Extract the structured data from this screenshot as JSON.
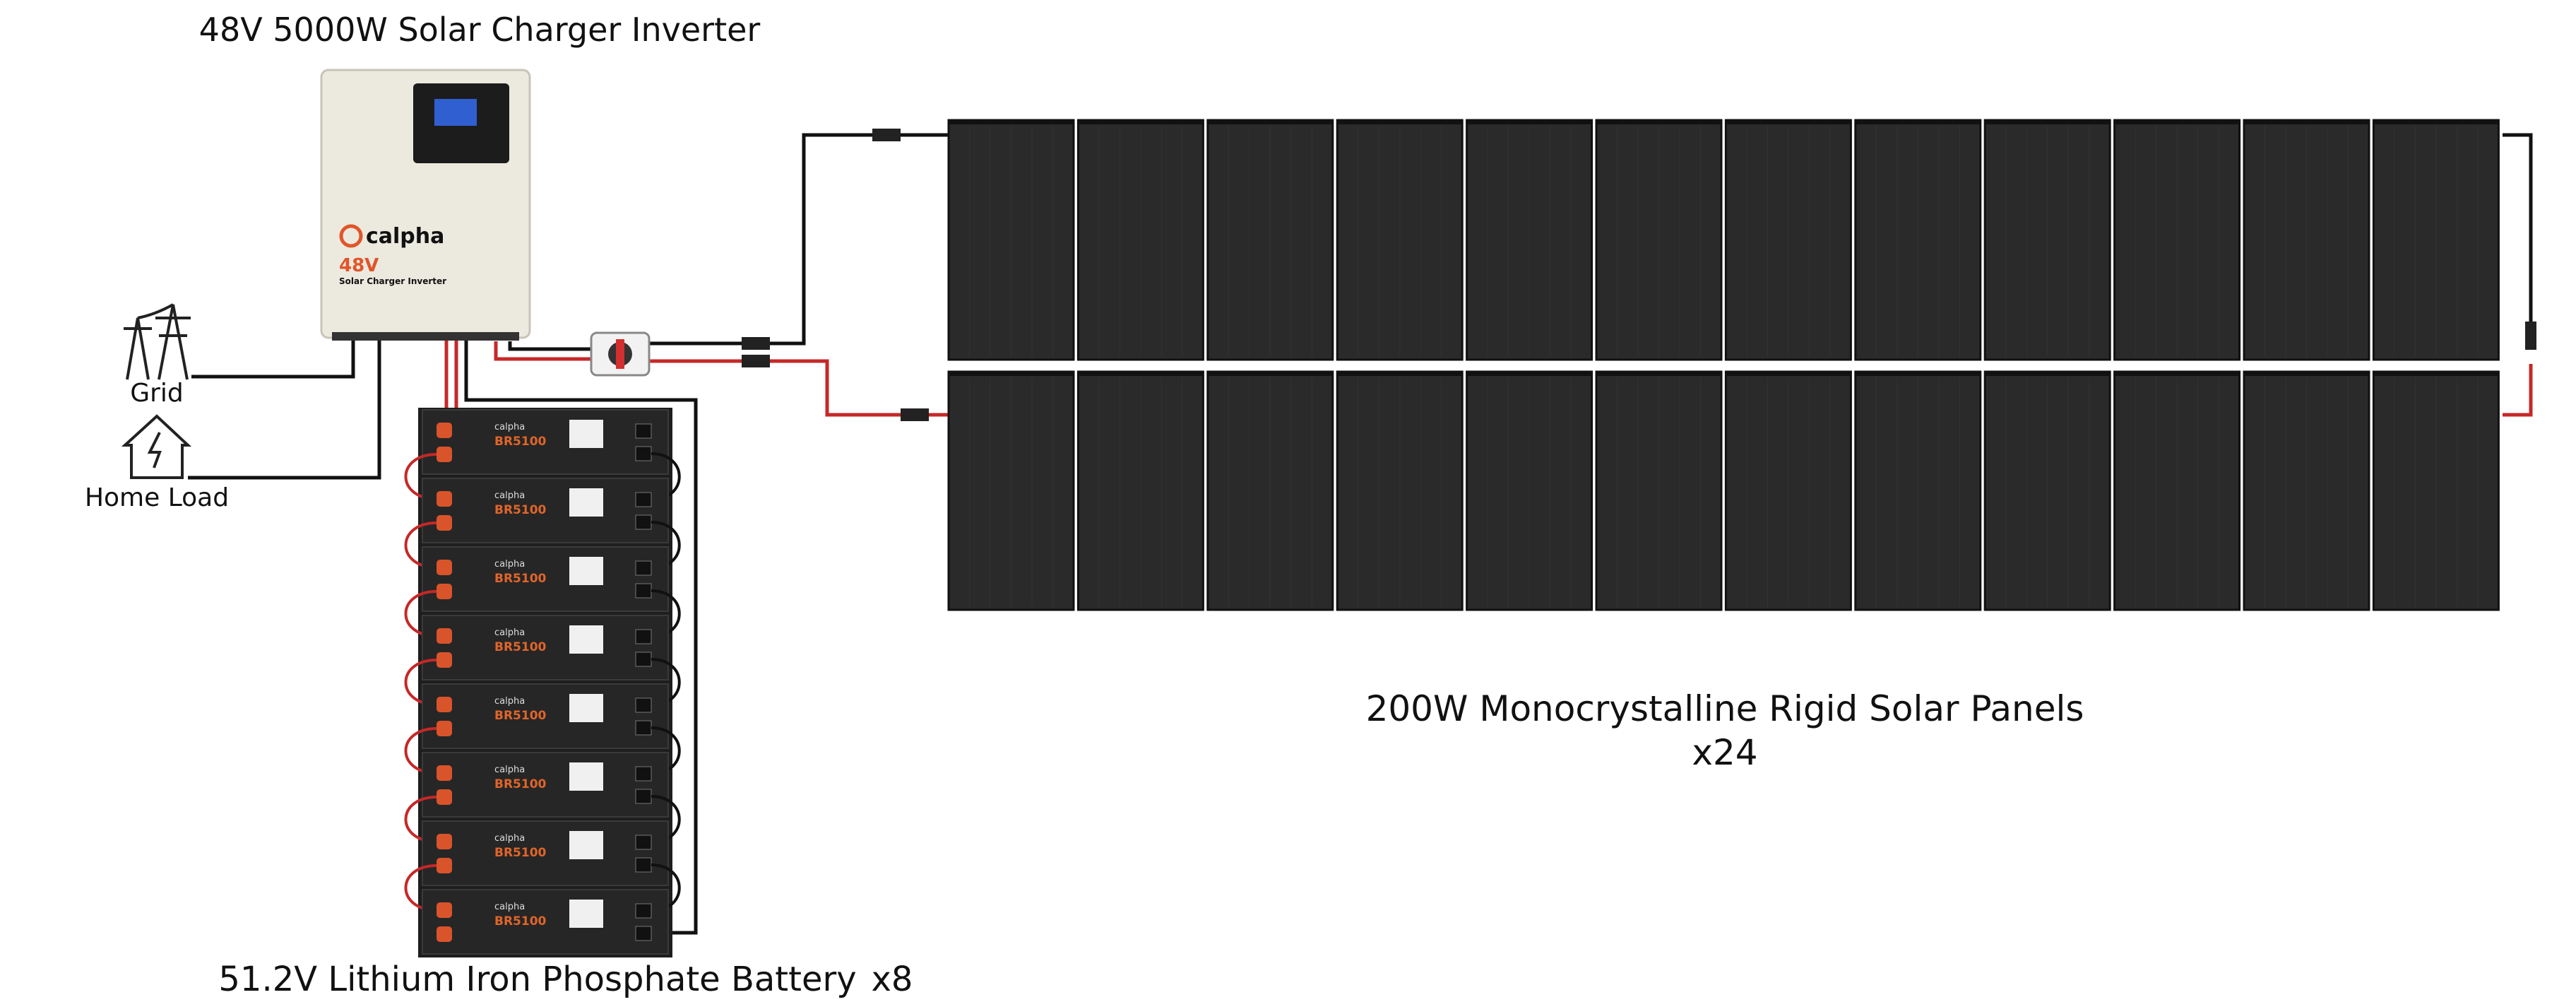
{
  "inverter": {
    "title": "48V 5000W Solar Charger Inverter",
    "brand": "calpha",
    "voltage": "48V",
    "model": "Solar Charger Inverter"
  },
  "grid": {
    "label": "Grid"
  },
  "home": {
    "label": "Home Load"
  },
  "battery": {
    "label": "51.2V Lithium Iron Phosphate Battery",
    "count": "x8",
    "brand": "calpha",
    "model": "BR5100"
  },
  "panels": {
    "label": "200W Monocrystalline Rigid Solar Panels",
    "count": "x24"
  }
}
